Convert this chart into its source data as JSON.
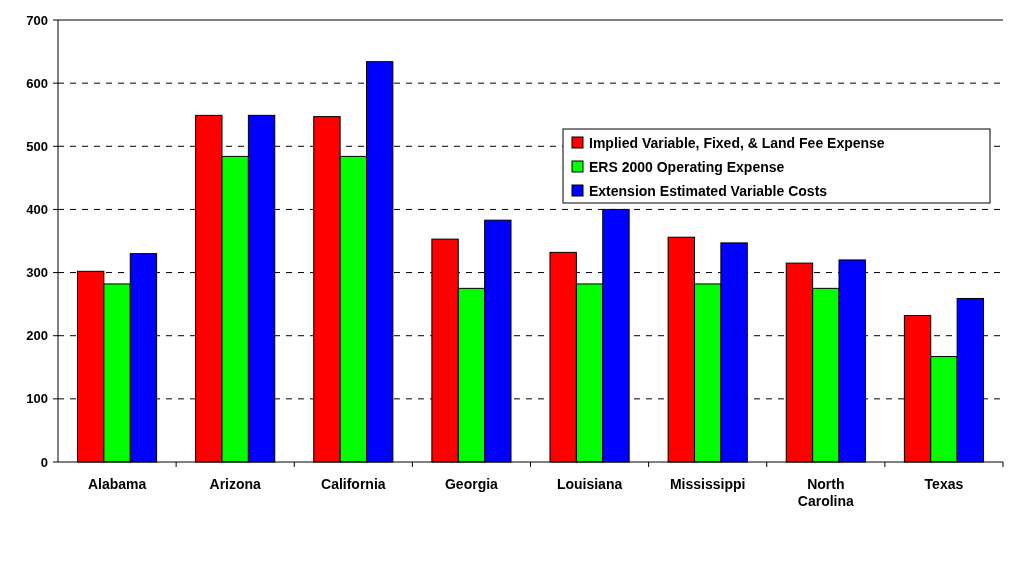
{
  "chart_data": {
    "type": "bar",
    "categories": [
      "Alabama",
      "Arizona",
      "California",
      "Georgia",
      "Louisiana",
      "Mississippi",
      "North Carolina",
      "Texas"
    ],
    "series": [
      {
        "name": "Implied Variable, Fixed, & Land Fee Expense",
        "color": "#ff0000",
        "values": [
          302,
          549,
          547,
          353,
          332,
          356,
          315,
          232
        ]
      },
      {
        "name": "ERS 2000 Operating Expense",
        "color": "#00ff00",
        "values": [
          282,
          484,
          484,
          275,
          282,
          282,
          275,
          167
        ]
      },
      {
        "name": "Extension Estimated Variable Costs",
        "color": "#0000ff",
        "values": [
          330,
          549,
          634,
          383,
          400,
          347,
          320,
          259
        ]
      }
    ],
    "ylim": [
      0,
      700
    ],
    "yticks": [
      0,
      100,
      200,
      300,
      400,
      500,
      600,
      700
    ],
    "grid": "y",
    "legend": "right"
  }
}
